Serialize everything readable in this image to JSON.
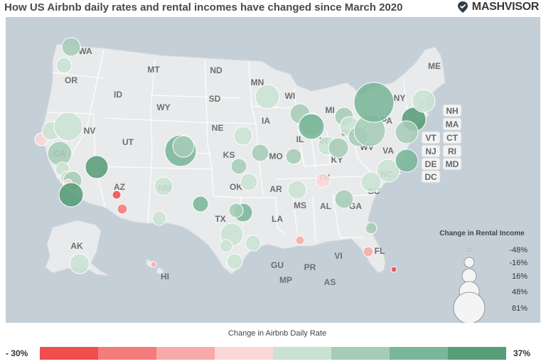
{
  "header": {
    "title": "How US Airbnb daily rates and rental incomes have changed since March 2020",
    "logo_text": "MASHVISOR"
  },
  "state_labels": [
    {
      "id": "WA",
      "text": "WA"
    },
    {
      "id": "OR",
      "text": "OR"
    },
    {
      "id": "MT",
      "text": "MT"
    },
    {
      "id": "ND",
      "text": "ND"
    },
    {
      "id": "ID",
      "text": "ID"
    },
    {
      "id": "MN",
      "text": "MN"
    },
    {
      "id": "SD",
      "text": "SD"
    },
    {
      "id": "WY",
      "text": "WY"
    },
    {
      "id": "WI",
      "text": "WI"
    },
    {
      "id": "MI",
      "text": "MI"
    },
    {
      "id": "NY",
      "text": "NY"
    },
    {
      "id": "ME",
      "text": "ME"
    },
    {
      "id": "NV",
      "text": "NV"
    },
    {
      "id": "NE",
      "text": "NE"
    },
    {
      "id": "IA",
      "text": "IA"
    },
    {
      "id": "UT",
      "text": "UT"
    },
    {
      "id": "CA",
      "text": "CA"
    },
    {
      "id": "CO",
      "text": "CO"
    },
    {
      "id": "IL",
      "text": "IL"
    },
    {
      "id": "IN",
      "text": "IN"
    },
    {
      "id": "OH",
      "text": "OH"
    },
    {
      "id": "PA",
      "text": "PA"
    },
    {
      "id": "KS",
      "text": "KS"
    },
    {
      "id": "MO",
      "text": "MO"
    },
    {
      "id": "WV",
      "text": "WV"
    },
    {
      "id": "VA",
      "text": "VA"
    },
    {
      "id": "KY",
      "text": "KY"
    },
    {
      "id": "AZ",
      "text": "AZ"
    },
    {
      "id": "NM",
      "text": "NM"
    },
    {
      "id": "OK",
      "text": "OK"
    },
    {
      "id": "AR",
      "text": "AR"
    },
    {
      "id": "TN",
      "text": "TN"
    },
    {
      "id": "NC",
      "text": "NC"
    },
    {
      "id": "SC",
      "text": "SC"
    },
    {
      "id": "MS",
      "text": "MS"
    },
    {
      "id": "AL",
      "text": "AL"
    },
    {
      "id": "GA",
      "text": "GA"
    },
    {
      "id": "TX",
      "text": "TX"
    },
    {
      "id": "LA",
      "text": "LA"
    },
    {
      "id": "FL",
      "text": "FL"
    },
    {
      "id": "AK",
      "text": "AK"
    },
    {
      "id": "HI",
      "text": "HI"
    },
    {
      "id": "GU",
      "text": "GU"
    },
    {
      "id": "PR",
      "text": "PR"
    },
    {
      "id": "VI",
      "text": "VI"
    },
    {
      "id": "MP",
      "text": "MP"
    },
    {
      "id": "AS",
      "text": "AS"
    }
  ],
  "northeast_boxes": [
    {
      "id": "NH",
      "text": "NH"
    },
    {
      "id": "MA",
      "text": "MA"
    },
    {
      "id": "VT",
      "text": "VT"
    },
    {
      "id": "CT",
      "text": "CT"
    },
    {
      "id": "NJ",
      "text": "NJ"
    },
    {
      "id": "RI",
      "text": "RI"
    },
    {
      "id": "DE",
      "text": "DE"
    },
    {
      "id": "MD",
      "text": "MD"
    },
    {
      "id": "DC",
      "text": "DC"
    }
  ],
  "markers": [
    {
      "id": "seattle",
      "rate": 12
    },
    {
      "id": "wa-south",
      "rate": 5
    },
    {
      "id": "ca-north-1",
      "rate": 3
    },
    {
      "id": "ca-north-2",
      "rate": 5
    },
    {
      "id": "tahoe",
      "rate": 10
    },
    {
      "id": "bay-area",
      "rate": 18
    },
    {
      "id": "ca-central",
      "rate": 8
    },
    {
      "id": "ca-coast-s",
      "rate": 6
    },
    {
      "id": "la-1",
      "rate": 14
    },
    {
      "id": "la-2",
      "rate": -4
    },
    {
      "id": "san-diego",
      "rate": 30
    },
    {
      "id": "vegas",
      "rate": 35
    },
    {
      "id": "denver-1",
      "rate": 25
    },
    {
      "id": "denver-2",
      "rate": 16
    },
    {
      "id": "nm",
      "rate": 6
    },
    {
      "id": "phoenix",
      "rate": -30
    },
    {
      "id": "tucson",
      "rate": -14
    },
    {
      "id": "az-south",
      "rate": 8
    },
    {
      "id": "minneapolis",
      "rate": 8
    },
    {
      "id": "ne-kansas",
      "rate": 8
    },
    {
      "id": "kc",
      "rate": 16
    },
    {
      "id": "ks-south",
      "rate": 16
    },
    {
      "id": "ok",
      "rate": 8
    },
    {
      "id": "tx-north",
      "rate": 28
    },
    {
      "id": "dallas-1",
      "rate": 24
    },
    {
      "id": "dallas-2",
      "rate": 14
    },
    {
      "id": "austin",
      "rate": 6
    },
    {
      "id": "tx-south",
      "rate": 4
    },
    {
      "id": "houston",
      "rate": 8
    },
    {
      "id": "tx-rgv",
      "rate": 5
    },
    {
      "id": "st-louis",
      "rate": 18
    },
    {
      "id": "ar",
      "rate": 7
    },
    {
      "id": "memphis",
      "rate": 0
    },
    {
      "id": "new-orleans",
      "rate": -12
    },
    {
      "id": "wisconsin",
      "rate": 12
    },
    {
      "id": "chicago",
      "rate": 14
    },
    {
      "id": "michigan",
      "rate": 26
    },
    {
      "id": "indianapolis",
      "rate": 6
    },
    {
      "id": "ohio-n",
      "rate": 18
    },
    {
      "id": "ohio-c",
      "rate": 10
    },
    {
      "id": "ky",
      "rate": 12
    },
    {
      "id": "pittsburgh",
      "rate": 14
    },
    {
      "id": "pa-central",
      "rate": 12
    },
    {
      "id": "new-york",
      "rate": 26
    },
    {
      "id": "philly",
      "rate": 30
    },
    {
      "id": "boston",
      "rate": 8
    },
    {
      "id": "nj",
      "rate": 14
    },
    {
      "id": "dc",
      "rate": 8
    },
    {
      "id": "virginia-beach",
      "rate": 26
    },
    {
      "id": "carolina",
      "rate": 10
    },
    {
      "id": "atlanta",
      "rate": 12
    },
    {
      "id": "jacksonville",
      "rate": 18
    },
    {
      "id": "orlando",
      "rate": -6
    },
    {
      "id": "miami",
      "rate": -22
    },
    {
      "id": "alaska",
      "rate": 6
    },
    {
      "id": "hawaii",
      "rate": -10
    }
  ],
  "size_legend": {
    "title": "Change in Rental Income",
    "items": [
      {
        "label": "-48%",
        "value": -48
      },
      {
        "label": "-16%",
        "value": -16
      },
      {
        "label": "16%",
        "value": 16
      },
      {
        "label": "48%",
        "value": 48
      },
      {
        "label": "81%",
        "value": 81
      }
    ]
  },
  "color_legend": {
    "title": "Change in Airbnb Daily Rate",
    "min_label": "- 30%",
    "max_label": "37%",
    "colors": [
      "#f04d4d",
      "#f47b7b",
      "#f8aaa9",
      "#fbd8d8",
      "#c9e2d4",
      "#a6ccb6",
      "#7ab698",
      "#579d78"
    ]
  }
}
